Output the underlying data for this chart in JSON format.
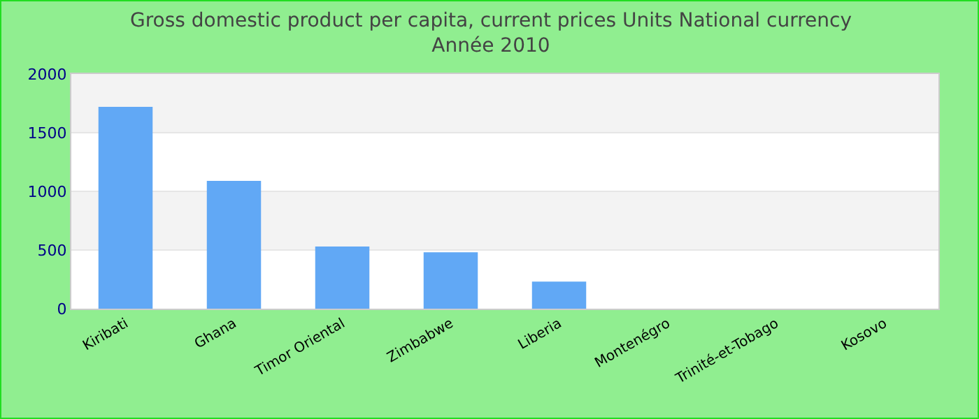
{
  "chart_data": {
    "type": "bar",
    "title": "Gross domestic product per capita, current prices Units National currency",
    "subtitle": "Année 2010",
    "categories": [
      "Kiribati",
      "Ghana",
      "Timor Oriental",
      "Zimbabwe",
      "Liberia",
      "Montenégro",
      "Trinité-et-Tobago",
      "Kosovo"
    ],
    "values": [
      1720,
      1090,
      530,
      480,
      230,
      null,
      null,
      null
    ],
    "color": "#61a8f5",
    "ylim": [
      0,
      2000
    ],
    "yticks": [
      0,
      500,
      1000,
      1500,
      2000
    ],
    "grid": "y",
    "legend": false
  }
}
